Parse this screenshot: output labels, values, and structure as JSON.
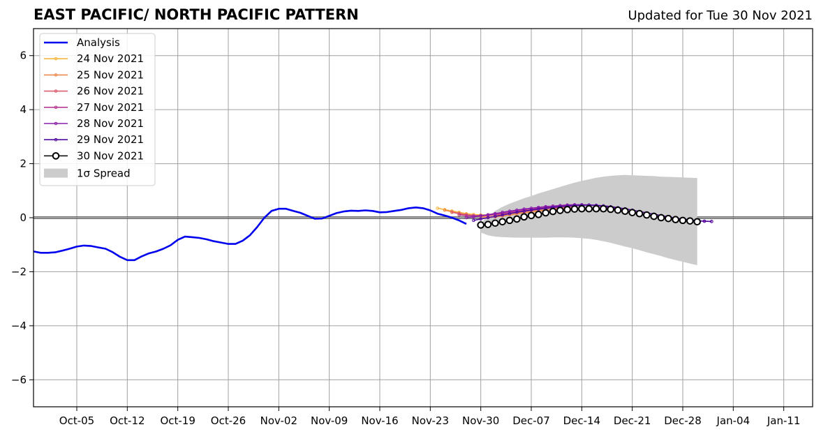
{
  "title": "EAST PACIFIC/ NORTH PACIFIC PATTERN",
  "updated": "Updated for Tue 30 Nov 2021",
  "chart_data": {
    "type": "line",
    "ylim": [
      -7,
      7
    ],
    "yticks": [
      -6,
      -4,
      -2,
      0,
      2,
      4,
      6
    ],
    "ytick_labels": [
      "−6",
      "−4",
      "−2",
      "0",
      "2",
      "4",
      "6"
    ],
    "xlim": [
      "2021-09-29",
      "2022-01-15"
    ],
    "xticks": [
      "2021-10-05",
      "2021-10-12",
      "2021-10-19",
      "2021-10-26",
      "2021-11-02",
      "2021-11-09",
      "2021-11-16",
      "2021-11-23",
      "2021-11-30",
      "2021-12-07",
      "2021-12-14",
      "2021-12-21",
      "2021-12-28",
      "2022-01-04",
      "2022-01-11"
    ],
    "xtick_labels": [
      "Oct-05",
      "Oct-12",
      "Oct-19",
      "Oct-26",
      "Nov-02",
      "Nov-09",
      "Nov-16",
      "Nov-23",
      "Nov-30",
      "Dec-07",
      "Dec-14",
      "Dec-21",
      "Dec-28",
      "Jan-04",
      "Jan-11"
    ],
    "grid": true,
    "legend_position": "top-left",
    "colors": {
      "analysis": "#0000ee",
      "24 Nov 2021": "#f5b53f",
      "25 Nov 2021": "#ee8a4a",
      "26 Nov 2021": "#dc5d6e",
      "27 Nov 2021": "#b83a8f",
      "28 Nov 2021": "#8a1cab",
      "29 Nov 2021": "#520aa0",
      "30 Nov 2021": "#000000",
      "spread": "#cccccc"
    },
    "legend": [
      "Analysis",
      "24 Nov 2021",
      "25 Nov 2021",
      "26 Nov 2021",
      "27 Nov 2021",
      "28 Nov 2021",
      "29 Nov 2021",
      "30 Nov 2021",
      "1σ Spread"
    ],
    "analysis": {
      "name": "Analysis",
      "start": "2021-09-29",
      "values": [
        -1.25,
        -1.3,
        -1.3,
        -1.28,
        -1.22,
        -1.15,
        -1.07,
        -1.03,
        -1.05,
        -1.1,
        -1.15,
        -1.28,
        -1.45,
        -1.57,
        -1.57,
        -1.43,
        -1.32,
        -1.25,
        -1.15,
        -1.02,
        -0.82,
        -0.7,
        -0.72,
        -0.75,
        -0.8,
        -0.87,
        -0.92,
        -0.97,
        -0.97,
        -0.85,
        -0.65,
        -0.35,
        0.0,
        0.25,
        0.33,
        0.33,
        0.25,
        0.18,
        0.07,
        -0.04,
        -0.03,
        0.07,
        0.17,
        0.23,
        0.26,
        0.25,
        0.27,
        0.25,
        0.2,
        0.21,
        0.25,
        0.29,
        0.35,
        0.38,
        0.35,
        0.27,
        0.15,
        0.08,
        0.0,
        -0.1,
        -0.23
      ]
    },
    "forecasts": [
      {
        "name": "24 Nov 2021",
        "start": "2021-11-24",
        "values": [
          0.35,
          0.3,
          0.25,
          0.2,
          0.15,
          0.12,
          0.1,
          0.1,
          0.1,
          0.12,
          0.15,
          0.18,
          0.2,
          0.22,
          0.25,
          0.27,
          0.29,
          0.3
        ]
      },
      {
        "name": "25 Nov 2021",
        "start": "2021-11-25",
        "values": [
          0.28,
          0.22,
          0.17,
          0.12,
          0.07,
          0.04,
          0.02,
          0.03,
          0.06,
          0.1,
          0.14,
          0.18,
          0.21,
          0.24,
          0.27,
          0.3,
          0.32,
          0.34
        ]
      },
      {
        "name": "26 Nov 2021",
        "start": "2021-11-26",
        "values": [
          0.2,
          0.15,
          0.1,
          0.08,
          0.07,
          0.08,
          0.1,
          0.13,
          0.16,
          0.2,
          0.23,
          0.27,
          0.3,
          0.33,
          0.35,
          0.37,
          0.39,
          0.4
        ]
      },
      {
        "name": "27 Nov 2021",
        "start": "2021-11-27",
        "values": [
          0.1,
          0.08,
          0.07,
          0.08,
          0.1,
          0.13,
          0.16,
          0.2,
          0.24,
          0.28,
          0.31,
          0.35,
          0.38,
          0.4,
          0.42,
          0.44,
          0.45,
          0.45
        ]
      },
      {
        "name": "28 Nov 2021",
        "start": "2021-11-28",
        "values": [
          0.0,
          0.03,
          0.07,
          0.11,
          0.15,
          0.2,
          0.24,
          0.28,
          0.32,
          0.35,
          0.38,
          0.41,
          0.43,
          0.45,
          0.47,
          0.48,
          0.48,
          0.47,
          0.45,
          0.41,
          0.37,
          0.32,
          0.27,
          0.22,
          0.17,
          0.12,
          0.07,
          0.02,
          -0.02,
          -0.05,
          -0.08,
          -0.1,
          -0.12,
          -0.13,
          -0.14
        ]
      },
      {
        "name": "29 Nov 2021",
        "start": "2021-11-29",
        "values": [
          -0.1,
          -0.05,
          0.0,
          0.05,
          0.1,
          0.15,
          0.2,
          0.24,
          0.28,
          0.32,
          0.35,
          0.38,
          0.41,
          0.43,
          0.45,
          0.46,
          0.47,
          0.46,
          0.44,
          0.41,
          0.37,
          0.33,
          0.28,
          0.23,
          0.18,
          0.13,
          0.08,
          0.03,
          -0.01,
          -0.05,
          -0.08,
          -0.11,
          -0.13,
          -0.14
        ]
      },
      {
        "name": "30 Nov 2021",
        "start": "2021-11-30",
        "values": [
          -0.27,
          -0.25,
          -0.2,
          -0.15,
          -0.1,
          -0.05,
          0.03,
          0.08,
          0.12,
          0.18,
          0.23,
          0.27,
          0.3,
          0.32,
          0.33,
          0.33,
          0.33,
          0.33,
          0.31,
          0.28,
          0.24,
          0.19,
          0.15,
          0.1,
          0.05,
          0.0,
          -0.03,
          -0.07,
          -0.1,
          -0.12,
          -0.15
        ]
      }
    ],
    "spread": {
      "name": "1σ Spread",
      "start": "2021-11-30",
      "upper": [
        -0.2,
        0.05,
        0.25,
        0.4,
        0.52,
        0.62,
        0.72,
        0.8,
        0.9,
        0.98,
        1.06,
        1.14,
        1.22,
        1.3,
        1.36,
        1.42,
        1.48,
        1.52,
        1.55,
        1.57,
        1.58,
        1.57,
        1.56,
        1.55,
        1.54,
        1.52,
        1.51,
        1.5,
        1.49,
        1.48,
        1.47
      ],
      "lower": [
        -0.55,
        -0.65,
        -0.7,
        -0.72,
        -0.73,
        -0.74,
        -0.74,
        -0.74,
        -0.74,
        -0.74,
        -0.73,
        -0.73,
        -0.73,
        -0.74,
        -0.76,
        -0.78,
        -0.82,
        -0.87,
        -0.93,
        -1.0,
        -1.07,
        -1.13,
        -1.2,
        -1.28,
        -1.35,
        -1.42,
        -1.5,
        -1.57,
        -1.63,
        -1.7,
        -1.76
      ]
    }
  }
}
